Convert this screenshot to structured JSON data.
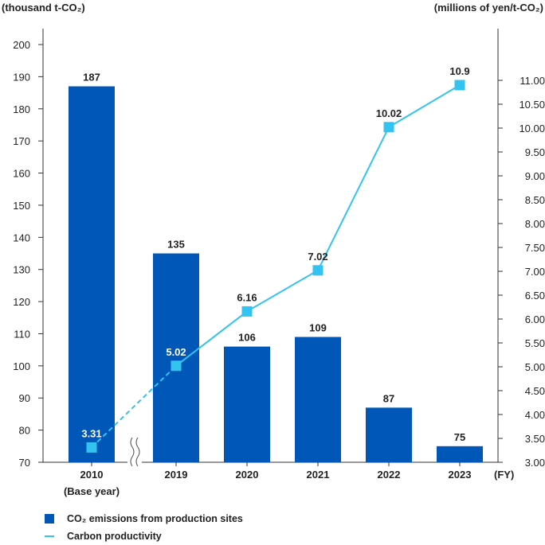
{
  "chart_data": {
    "type": "bar+line",
    "categories": [
      "2010",
      "2019",
      "2020",
      "2021",
      "2022",
      "2023"
    ],
    "category_sublabels": [
      "(Base year)",
      "",
      "",
      "",
      "",
      ""
    ],
    "x_unit": "(FY)",
    "left_axis": {
      "unit": "(thousand t-CO₂)",
      "range": [
        70,
        200
      ],
      "ticks": [
        70,
        80,
        90,
        100,
        110,
        120,
        130,
        140,
        150,
        160,
        170,
        180,
        190,
        200
      ]
    },
    "right_axis": {
      "unit": "(millions of yen/t-CO₂)",
      "range": [
        3.0,
        11.65
      ],
      "ticks": [
        "3.00",
        "3.50",
        "4.00",
        "4.50",
        "5.00",
        "5.50",
        "6.00",
        "6.50",
        "7.00",
        "7.50",
        "8.00",
        "8.50",
        "9.00",
        "9.50",
        "10.00",
        "10.50",
        "11.00"
      ]
    },
    "series": [
      {
        "name": "CO₂ emissions from production sites",
        "kind": "bar",
        "axis": "left",
        "color": "#0057b8",
        "values": [
          187,
          135,
          106,
          109,
          87,
          75
        ],
        "labels": [
          "187",
          "135",
          "106",
          "109",
          "87",
          "75"
        ]
      },
      {
        "name": "Carbon productivity",
        "kind": "line",
        "axis": "right",
        "color": "#33c3f0",
        "values": [
          3.31,
          5.02,
          6.16,
          7.02,
          10.02,
          10.9
        ],
        "labels": [
          "3.31",
          "5.02",
          "6.16",
          "7.02",
          "10.02",
          "10.9"
        ],
        "dashed_segments": [
          0
        ]
      }
    ],
    "axis_break_between": [
      "2010",
      "2019"
    ],
    "legend_position": "bottom-left",
    "grid": false
  }
}
